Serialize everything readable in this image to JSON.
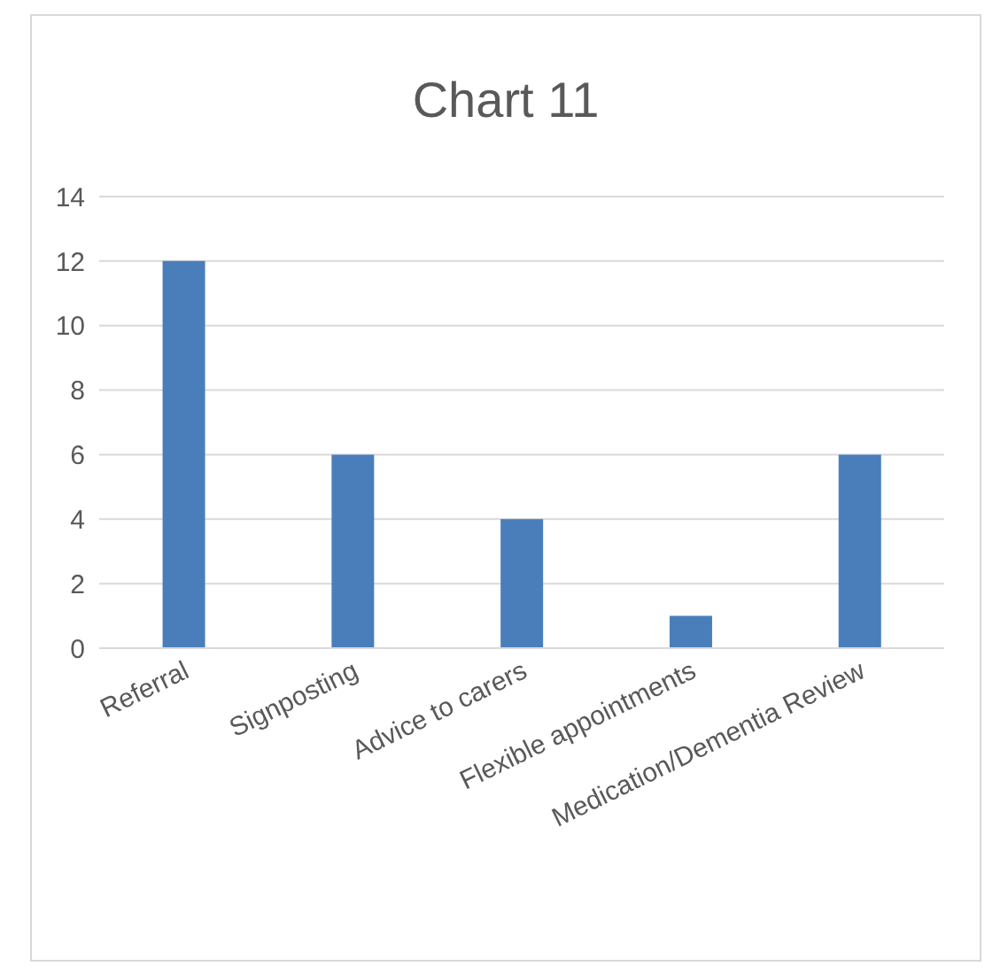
{
  "chart_data": {
    "type": "bar",
    "title": "Chart 11",
    "categories": [
      "Referral",
      "Signposting",
      "Advice to carers",
      "Flexible appointments",
      "Medication/Dementia Review"
    ],
    "values": [
      12,
      6,
      4,
      1,
      6
    ],
    "color": "#4a7ebb",
    "ylim": [
      0,
      14
    ],
    "yticks": [
      0,
      2,
      4,
      6,
      8,
      10,
      12,
      14
    ],
    "grid": "y"
  }
}
